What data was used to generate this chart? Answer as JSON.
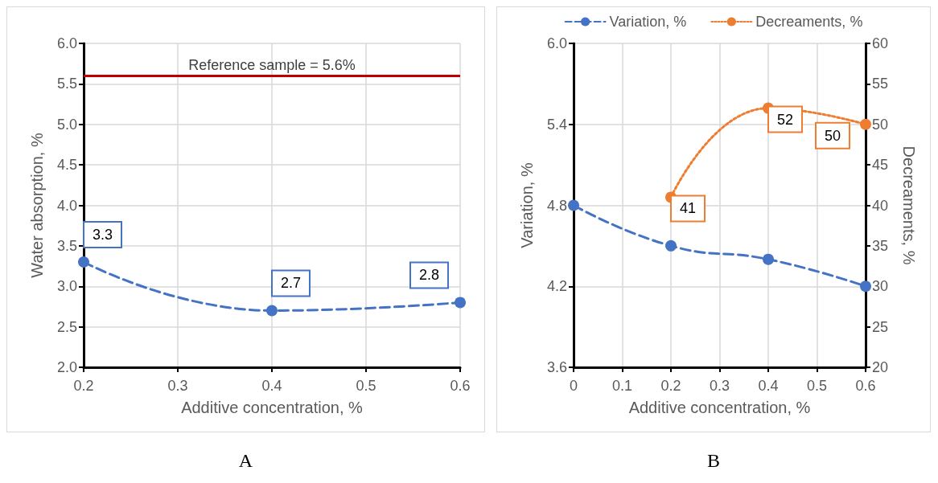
{
  "chart_data": [
    {
      "type": "line",
      "xlabel": "Additive concentration, %",
      "ylabel": "Water absorption, %",
      "annotations": [
        "A"
      ],
      "x": [
        0.2,
        0.4,
        0.6
      ],
      "series": [
        {
          "color": "#4472c4",
          "line_style": "dashed",
          "values": [
            3.3,
            2.7,
            2.8
          ]
        }
      ],
      "xlim": [
        0.2,
        0.6
      ],
      "xticks": [
        0.2,
        0.3,
        0.4,
        0.5,
        0.6
      ],
      "ylim": [
        2,
        6
      ],
      "yticks": [
        {
          "value": 2,
          "label": "2.0"
        },
        2.5,
        {
          "value": 3,
          "label": "3.0"
        },
        3.5,
        {
          "value": 4,
          "label": "4.0"
        },
        4.5,
        {
          "value": 5,
          "label": "5.0"
        },
        5.5,
        {
          "value": 6,
          "label": "6.0"
        }
      ],
      "ref_lines": [
        {
          "axis": "y",
          "value": 5.6,
          "label": "Reference sample = 5.6%",
          "color": "#c00000",
          "line_style": "solid"
        }
      ],
      "data_labels": true,
      "grid": true,
      "legend": false,
      "marker": "circle"
    },
    {
      "type": "line",
      "xlabel": "Additive concentration, %",
      "ylabel": "Variation, %",
      "y2label": "Decreaments, %",
      "annotations": [
        "B"
      ],
      "x": [
        0,
        0.2,
        0.4,
        0.6
      ],
      "series": [
        {
          "name": "Variation, %",
          "color": "#4472c4",
          "line_style": "dashed",
          "values": [
            4.8,
            4.5,
            4.4,
            4.2
          ]
        },
        {
          "name": "Decreaments, %",
          "color": "#ed7d31",
          "line_style": "dotted",
          "axis": "y2",
          "x": [
            0.2,
            0.4,
            0.6
          ],
          "values": [
            41,
            52,
            50
          ],
          "value_labels": [
            "41",
            "52",
            "50"
          ]
        }
      ],
      "xlim": [
        0,
        0.6
      ],
      "xticks": [
        0,
        0.1,
        0.2,
        0.3,
        0.4,
        0.5,
        0.6
      ],
      "ylim": [
        3.6,
        6
      ],
      "yticks": [
        3.6,
        4.2,
        4.8,
        5.4,
        {
          "value": 6,
          "label": "6.0"
        }
      ],
      "y2lim": [
        20,
        60
      ],
      "y2ticks": [
        20,
        25,
        30,
        35,
        40,
        45,
        50,
        55,
        60
      ],
      "grid": true,
      "legend": "top",
      "marker": "circle"
    }
  ]
}
